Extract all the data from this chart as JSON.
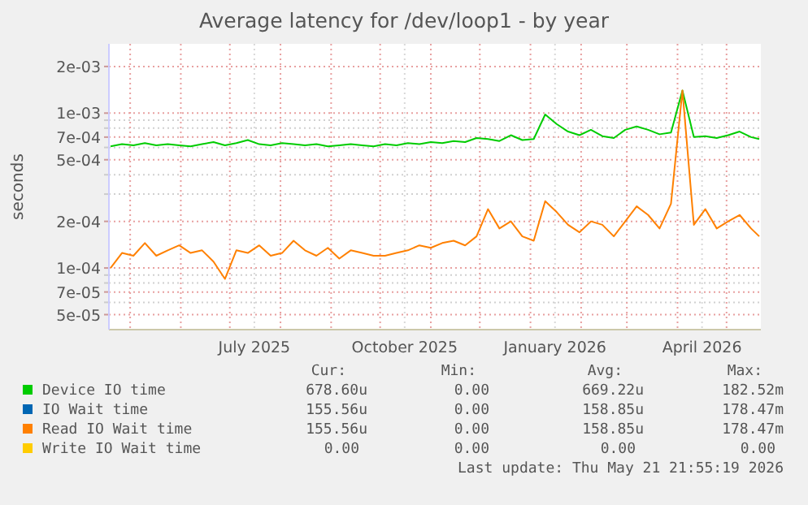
{
  "chart_data": {
    "type": "line",
    "title": "Average latency for /dev/loop1 - by year",
    "ylabel": "seconds",
    "log": "y",
    "grid": true,
    "legend": "bottom",
    "marker": "none",
    "line_style": "solid",
    "x": [
      "2025-04-19",
      "2025-04-26",
      "2025-05-03",
      "2025-05-10",
      "2025-05-17",
      "2025-05-24",
      "2025-05-31",
      "2025-06-07",
      "2025-06-14",
      "2025-06-21",
      "2025-06-28",
      "2025-07-05",
      "2025-07-12",
      "2025-07-19",
      "2025-07-26",
      "2025-08-02",
      "2025-08-09",
      "2025-08-16",
      "2025-08-23",
      "2025-08-30",
      "2025-09-06",
      "2025-09-13",
      "2025-09-20",
      "2025-09-27",
      "2025-10-04",
      "2025-10-11",
      "2025-10-18",
      "2025-10-25",
      "2025-11-01",
      "2025-11-08",
      "2025-11-15",
      "2025-11-22",
      "2025-11-29",
      "2025-12-06",
      "2025-12-13",
      "2025-12-20",
      "2025-12-27",
      "2026-01-03",
      "2026-01-10",
      "2026-01-17",
      "2026-01-24",
      "2026-01-31",
      "2026-02-07",
      "2026-02-14",
      "2026-02-21",
      "2026-02-28",
      "2026-03-07",
      "2026-03-14",
      "2026-03-21",
      "2026-03-28",
      "2026-04-04",
      "2026-04-11",
      "2026-04-18",
      "2026-04-25",
      "2026-05-02",
      "2026-05-09",
      "2026-05-16",
      "2026-05-21"
    ],
    "xlim": [
      "2025-04-18",
      "2026-05-22"
    ],
    "xticks": [
      {
        "value": "2025-05-01",
        "label": null
      },
      {
        "value": "2025-06-01",
        "label": null
      },
      {
        "value": "2025-07-01",
        "label": null
      },
      {
        "value": "2025-07-16",
        "label": "July 2025"
      },
      {
        "value": "2025-08-01",
        "label": null
      },
      {
        "value": "2025-09-01",
        "label": null
      },
      {
        "value": "2025-10-01",
        "label": null
      },
      {
        "value": "2025-10-16",
        "label": "October 2025"
      },
      {
        "value": "2025-11-01",
        "label": null
      },
      {
        "value": "2025-12-01",
        "label": null
      },
      {
        "value": "2026-01-01",
        "label": null
      },
      {
        "value": "2026-01-16",
        "label": "January 2026"
      },
      {
        "value": "2026-02-01",
        "label": null
      },
      {
        "value": "2026-03-01",
        "label": null
      },
      {
        "value": "2026-04-01",
        "label": null
      },
      {
        "value": "2026-04-16",
        "label": "April 2026"
      },
      {
        "value": "2026-05-01",
        "label": null
      }
    ],
    "ylim": [
      4e-05,
      0.0028
    ],
    "yticks": [
      {
        "value": 5e-05,
        "label": "5e-05"
      },
      {
        "value": 6e-05,
        "label": null
      },
      {
        "value": 7e-05,
        "label": "7e-05"
      },
      {
        "value": 8e-05,
        "label": null
      },
      {
        "value": 9e-05,
        "label": null
      },
      {
        "value": 0.0001,
        "label": "1e-04"
      },
      {
        "value": 0.0002,
        "label": "2e-04"
      },
      {
        "value": 0.0003,
        "label": null
      },
      {
        "value": 0.0004,
        "label": null
      },
      {
        "value": 0.0005,
        "label": "5e-04"
      },
      {
        "value": 0.0006,
        "label": null
      },
      {
        "value": 0.0007,
        "label": "7e-04"
      },
      {
        "value": 0.0008,
        "label": null
      },
      {
        "value": 0.0009,
        "label": null
      },
      {
        "value": 0.001,
        "label": "1e-03"
      },
      {
        "value": 0.002,
        "label": "2e-03"
      }
    ],
    "series": [
      {
        "name": "Device IO time",
        "color": "#00cc00",
        "values": [
          0.00061,
          0.00063,
          0.00062,
          0.00064,
          0.00062,
          0.00063,
          0.00062,
          0.00061,
          0.00063,
          0.00065,
          0.00062,
          0.00064,
          0.00067,
          0.00063,
          0.00062,
          0.00064,
          0.00063,
          0.00062,
          0.00063,
          0.00061,
          0.00062,
          0.00063,
          0.00062,
          0.00061,
          0.00063,
          0.00062,
          0.00064,
          0.00063,
          0.00065,
          0.00064,
          0.00066,
          0.00065,
          0.00069,
          0.00068,
          0.00066,
          0.00072,
          0.00067,
          0.00068,
          0.00098,
          0.00085,
          0.00076,
          0.00072,
          0.00078,
          0.00071,
          0.00069,
          0.00078,
          0.00082,
          0.00078,
          0.00073,
          0.00075,
          0.0014,
          0.0007,
          0.00071,
          0.00069,
          0.00072,
          0.00076,
          0.0007,
          0.00068
        ]
      },
      {
        "name": "IO Wait time",
        "color": "#0066b3",
        "values": [
          null,
          null,
          null,
          null,
          null,
          null,
          null,
          null,
          null,
          null,
          null,
          null,
          null,
          null,
          null,
          null,
          null,
          null,
          null,
          null,
          null,
          null,
          null,
          null,
          null,
          null,
          null,
          null,
          null,
          null,
          null,
          null,
          null,
          null,
          null,
          null,
          null,
          null,
          null,
          null,
          null,
          null,
          null,
          null,
          null,
          null,
          null,
          null,
          null,
          null,
          null,
          null,
          null,
          null,
          null,
          null,
          null,
          null
        ]
      },
      {
        "name": "Read IO Wait time",
        "color": "#ff8000",
        "values": [
          0.0001,
          0.000125,
          0.00012,
          0.000145,
          0.00012,
          0.00013,
          0.00014,
          0.000125,
          0.00013,
          0.00011,
          8.5e-05,
          0.00013,
          0.000125,
          0.00014,
          0.00012,
          0.000125,
          0.00015,
          0.00013,
          0.00012,
          0.000135,
          0.000115,
          0.00013,
          0.000125,
          0.00012,
          0.00012,
          0.000125,
          0.00013,
          0.00014,
          0.000135,
          0.000145,
          0.00015,
          0.00014,
          0.00016,
          0.00024,
          0.00018,
          0.0002,
          0.00016,
          0.00015,
          0.00027,
          0.00023,
          0.00019,
          0.00017,
          0.0002,
          0.00019,
          0.00016,
          0.0002,
          0.00025,
          0.00022,
          0.00018,
          0.00026,
          0.0014,
          0.00019,
          0.00024,
          0.00018,
          0.0002,
          0.00022,
          0.00018,
          0.00016
        ]
      },
      {
        "name": "Write IO Wait time",
        "color": "#ffcc00",
        "values": [
          null,
          null,
          null,
          null,
          null,
          null,
          null,
          null,
          null,
          null,
          null,
          null,
          null,
          null,
          null,
          null,
          null,
          null,
          null,
          null,
          null,
          null,
          null,
          null,
          null,
          null,
          null,
          null,
          null,
          null,
          null,
          null,
          null,
          null,
          null,
          null,
          null,
          null,
          null,
          null,
          null,
          null,
          null,
          null,
          null,
          null,
          null,
          null,
          null,
          null,
          null,
          null,
          null,
          null,
          null,
          null,
          null,
          null
        ]
      }
    ],
    "annotations": [
      "Cur:",
      "Min:",
      "Avg:",
      "Max:",
      "678.60u",
      "0.00",
      "669.22u",
      "182.52m",
      "155.56u",
      "0.00",
      "158.85u",
      "178.47m",
      "155.56u",
      "0.00",
      "158.85u",
      "178.47m",
      "0.00",
      "0.00",
      "0.00",
      "0.00",
      "Last update: Thu May 21 21:55:19 2026"
    ]
  }
}
